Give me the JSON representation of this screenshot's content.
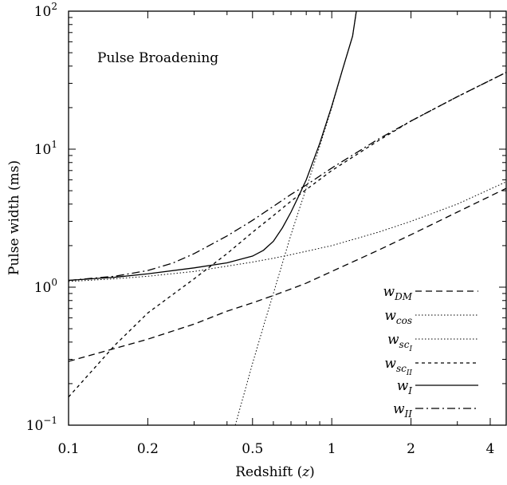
{
  "chart_data": {
    "type": "line",
    "title": "",
    "annotation": "Pulse Broadening",
    "xlabel": "Redshift (z)",
    "ylabel": "Pulse width (ms)",
    "xscale": "log",
    "yscale": "log",
    "xlim": [
      0.1,
      4.6
    ],
    "ylim": [
      0.1,
      100
    ],
    "x_ticks": [
      {
        "value": 0.1,
        "label": "0.1"
      },
      {
        "value": 0.2,
        "label": "0.2"
      },
      {
        "value": 0.5,
        "label": "0.5"
      },
      {
        "value": 1,
        "label": "1"
      },
      {
        "value": 2,
        "label": "2"
      },
      {
        "value": 4,
        "label": "4"
      }
    ],
    "y_ticks": [
      {
        "value": 0.1,
        "base": "10",
        "exp": "−1"
      },
      {
        "value": 1,
        "base": "10",
        "exp": "0"
      },
      {
        "value": 10,
        "base": "10",
        "exp": "1"
      },
      {
        "value": 100,
        "base": "10",
        "exp": "2"
      }
    ],
    "grid": false,
    "legend_position": "bottom-right",
    "series": [
      {
        "name": "w_DM",
        "label_main": "w",
        "label_sub": "DM",
        "label_subsub": "",
        "dash": "8,5",
        "width": 1.3,
        "x": [
          0.1,
          0.15,
          0.2,
          0.3,
          0.4,
          0.5,
          0.6,
          0.7,
          0.8,
          1.0,
          1.5,
          2.0,
          3.0,
          4.6
        ],
        "y": [
          0.29,
          0.36,
          0.42,
          0.54,
          0.67,
          0.77,
          0.87,
          0.97,
          1.07,
          1.3,
          1.85,
          2.4,
          3.5,
          5.2
        ]
      },
      {
        "name": "w_cos",
        "label_main": "w",
        "label_sub": "cos",
        "label_subsub": "",
        "dash": "1.5,2.5",
        "width": 1.0,
        "x": [
          0.1,
          0.15,
          0.2,
          0.3,
          0.4,
          0.5,
          0.6,
          0.7,
          0.8,
          1.0,
          1.5,
          2.0,
          3.0,
          4.6
        ],
        "y": [
          1.1,
          1.15,
          1.2,
          1.3,
          1.42,
          1.52,
          1.62,
          1.72,
          1.82,
          2.0,
          2.5,
          3.0,
          4.0,
          5.8
        ]
      },
      {
        "name": "w_scI",
        "label_main": "w",
        "label_sub": "sc",
        "label_subsub": "I",
        "dash": "1.5,2.5",
        "width": 1.0,
        "x": [
          0.43,
          0.5,
          0.55,
          0.6,
          0.65,
          0.7,
          0.75,
          0.8,
          0.9,
          1.0,
          1.1,
          1.2,
          1.24
        ],
        "y": [
          0.1,
          0.28,
          0.52,
          0.9,
          1.5,
          2.4,
          3.6,
          5.2,
          10.5,
          20,
          38,
          66,
          100
        ]
      },
      {
        "name": "w_scII",
        "label_main": "w",
        "label_sub": "sc",
        "label_subsub": "II",
        "dash": "4,4",
        "width": 1.3,
        "x": [
          0.1,
          0.15,
          0.2,
          0.3,
          0.4,
          0.5,
          0.6,
          0.7,
          0.8,
          1.0,
          1.5,
          2.0,
          3.0,
          4.6
        ],
        "y": [
          0.16,
          0.38,
          0.65,
          1.15,
          1.75,
          2.5,
          3.3,
          4.2,
          5.1,
          7.0,
          11.5,
          16,
          24,
          36
        ]
      },
      {
        "name": "w_I",
        "label_main": "w",
        "label_sub": "I",
        "label_subsub": "",
        "dash": "",
        "width": 1.3,
        "x": [
          0.1,
          0.15,
          0.2,
          0.3,
          0.4,
          0.5,
          0.55,
          0.6,
          0.65,
          0.7,
          0.75,
          0.8,
          0.9,
          1.0,
          1.1,
          1.2,
          1.24
        ],
        "y": [
          1.12,
          1.18,
          1.25,
          1.38,
          1.5,
          1.68,
          1.85,
          2.15,
          2.7,
          3.5,
          4.6,
          6.0,
          11,
          20.5,
          38,
          66,
          100
        ]
      },
      {
        "name": "w_II",
        "label_main": "w",
        "label_sub": "II",
        "label_subsub": "",
        "dash": "10,4,2,4",
        "width": 1.3,
        "x": [
          0.1,
          0.15,
          0.2,
          0.25,
          0.3,
          0.4,
          0.5,
          0.6,
          0.7,
          0.8,
          1.0,
          1.5,
          2.0,
          3.0,
          4.6
        ],
        "y": [
          1.12,
          1.2,
          1.32,
          1.5,
          1.75,
          2.35,
          3.05,
          3.85,
          4.7,
          5.5,
          7.3,
          11.8,
          16,
          24,
          36
        ]
      }
    ]
  }
}
